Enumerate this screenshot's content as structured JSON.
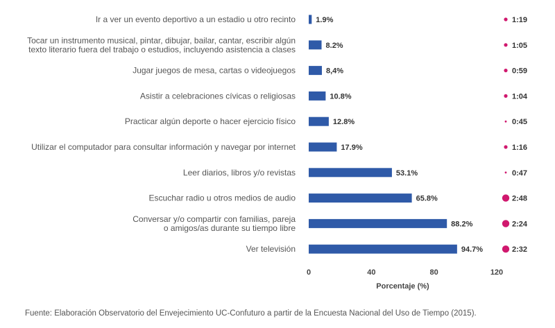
{
  "chart_data": {
    "type": "bar",
    "orientation": "horizontal",
    "categories": [
      [
        "Ir a ver un evento deportivo a un estadio u otro recinto"
      ],
      [
        "Tocar un instrumento musical, pintar, dibujar, bailar, cantar, escribir algún",
        "texto literario fuera del trabajo o estudios, incluyendo asistencia a clases"
      ],
      [
        "Jugar juegos de mesa, cartas o videojuegos"
      ],
      [
        "Asistir a celebraciones cívicas o religiosas"
      ],
      [
        "Practicar algún deporte o hacer ejercicio físico"
      ],
      [
        "Utilizar el computador para consultar información y navegar por internet"
      ],
      [
        "Leer diarios, libros y/o revistas"
      ],
      [
        "Escuchar radio u otros medios de audio"
      ],
      [
        "Conversar y/o compartir con familias, pareja",
        "o amigos/as durante su tiempo libre"
      ],
      [
        "Ver televisión"
      ]
    ],
    "values": [
      1.9,
      8.2,
      8.4,
      10.8,
      12.8,
      17.9,
      53.1,
      65.8,
      88.2,
      94.7
    ],
    "value_labels": [
      "1.9%",
      "8.2%",
      "8,4%",
      "10.8%",
      "12.8%",
      "17.9%",
      "53.1%",
      "65.8%",
      "88.2%",
      "94.7%"
    ],
    "times": [
      "1:19",
      "1:05",
      "0:59",
      "1:04",
      "0:45",
      "1:16",
      "0:47",
      "2:48",
      "2:24",
      "2:32"
    ],
    "xlim": [
      0,
      120
    ],
    "xticks": [
      0,
      40,
      80,
      120
    ],
    "xlabel": "Porcentaje (%)",
    "bar_color": "#2f5aa8",
    "dot_color": "#d0186e"
  },
  "source": "Fuente: Elaboración Observatorio del Envejecimiento UC-Confuturo a partir de la Encuesta Nacional del Uso de Tiempo (2015)."
}
